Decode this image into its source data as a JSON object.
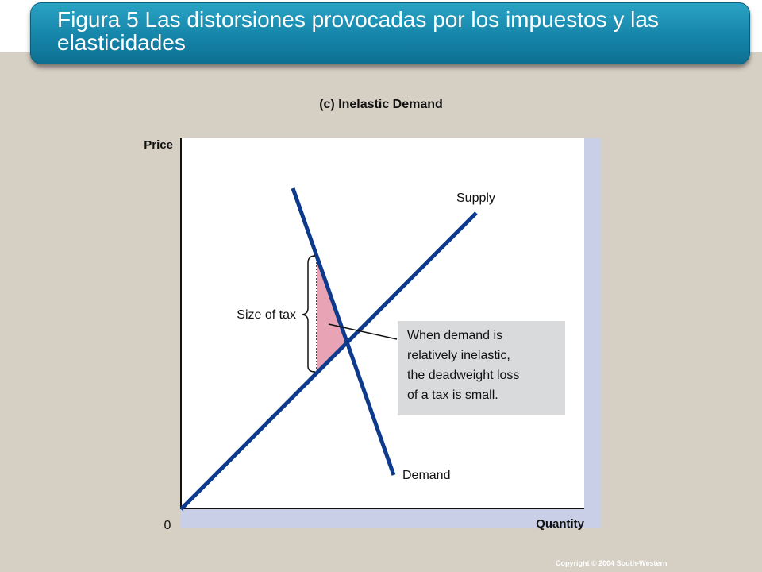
{
  "slide": {
    "title": "Figura 5 Las distorsiones provocadas por los impuestos y las elasticidades",
    "copyright": "Copyright © 2004  South-Western"
  },
  "diagram": {
    "panel_title": "(c) Inelastic Demand",
    "y_axis_label": "Price",
    "x_axis_label": "Quantity",
    "origin_label": "0",
    "supply_label": "Supply",
    "demand_label": "Demand",
    "tax_label": "Size of tax",
    "callout_lines": [
      "When demand is",
      "relatively inelastic,",
      "the deadweight loss",
      "of a tax is small."
    ]
  },
  "colors": {
    "title_bar": "#1585a9",
    "curves": "#0d3a8c",
    "deadweight_loss": "#e8a3b4",
    "background": "#d6cfc4",
    "plot_area": "#ffffff",
    "callout_box": "#d9dadb"
  }
}
